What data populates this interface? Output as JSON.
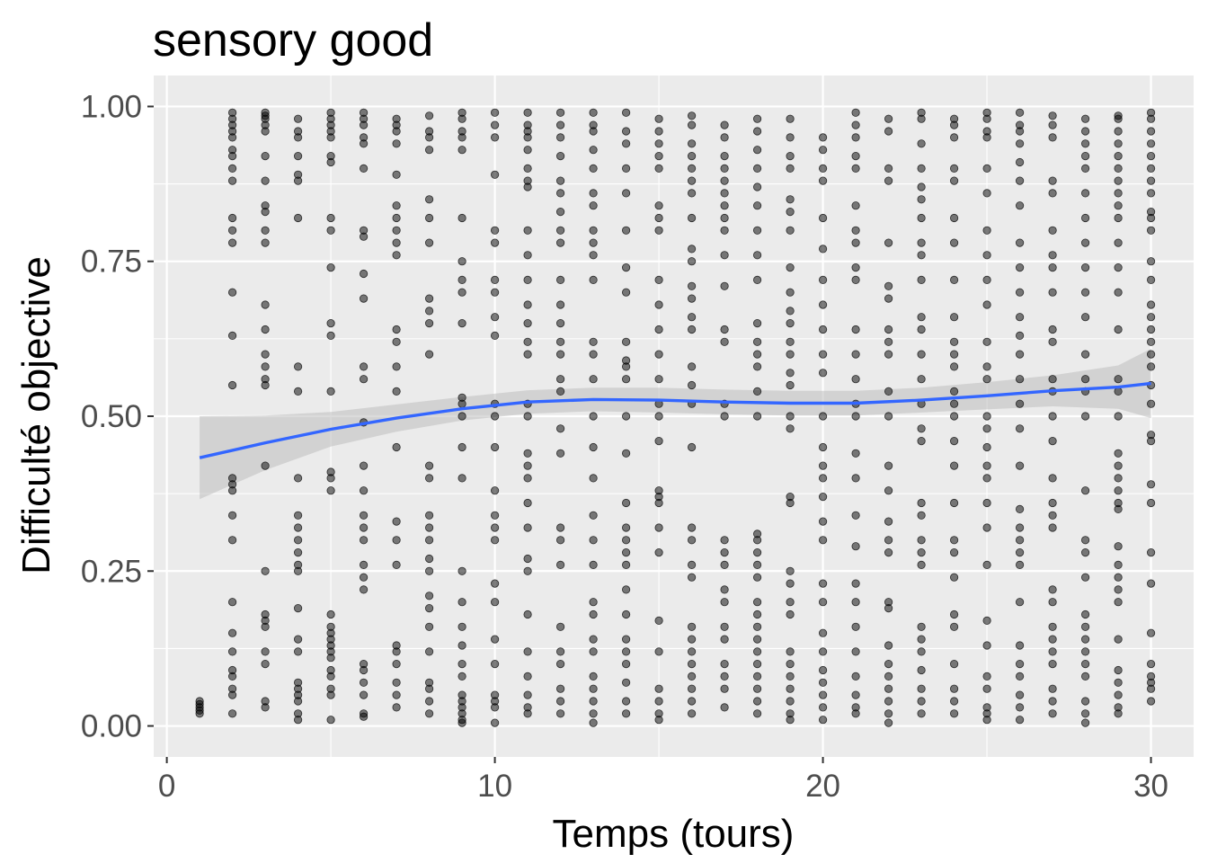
{
  "chart_data": {
    "type": "scatter",
    "title": "sensory good",
    "xlabel": "Temps (tours)",
    "ylabel": "Difficulté objective",
    "xlim": [
      -0.4,
      31.3
    ],
    "ylim": [
      -0.05,
      1.05
    ],
    "x_ticks": [
      0,
      10,
      20,
      30
    ],
    "x_tick_labels": [
      "0",
      "10",
      "20",
      "30"
    ],
    "y_ticks": [
      0,
      0.25,
      0.5,
      0.75,
      1
    ],
    "y_tick_labels": [
      "0.00",
      "0.25",
      "0.50",
      "0.75",
      "1.00"
    ],
    "grid": true,
    "legend": "none",
    "colors": {
      "panel_background": "#ebebeb",
      "grid_major": "#ffffff",
      "points": "#000000",
      "smooth_line": "#3366ff",
      "confidence_band": "#bebebe"
    },
    "point_opacity": 0.5,
    "points": [
      {
        "x": 1,
        "y": [
          0.02,
          0.025,
          0.03,
          0.035,
          0.04
        ]
      },
      {
        "x": 2,
        "y": [
          0.02,
          0.05,
          0.06,
          0.08,
          0.09,
          0.12,
          0.15,
          0.2,
          0.3,
          0.34,
          0.38,
          0.39,
          0.4,
          0.55,
          0.63,
          0.7,
          0.78,
          0.8,
          0.82,
          0.88,
          0.9,
          0.92,
          0.93,
          0.95,
          0.96,
          0.97,
          0.98,
          0.99
        ]
      },
      {
        "x": 3,
        "y": [
          0.03,
          0.04,
          0.1,
          0.12,
          0.16,
          0.17,
          0.18,
          0.25,
          0.42,
          0.55,
          0.56,
          0.58,
          0.6,
          0.64,
          0.68,
          0.78,
          0.8,
          0.83,
          0.84,
          0.88,
          0.92,
          0.96,
          0.97,
          0.98,
          0.985,
          0.99
        ]
      },
      {
        "x": 4,
        "y": [
          0.01,
          0.02,
          0.04,
          0.05,
          0.06,
          0.07,
          0.12,
          0.14,
          0.19,
          0.25,
          0.26,
          0.28,
          0.3,
          0.32,
          0.34,
          0.4,
          0.54,
          0.58,
          0.82,
          0.88,
          0.89,
          0.92,
          0.95,
          0.96,
          0.98
        ]
      },
      {
        "x": 5,
        "y": [
          0.01,
          0.05,
          0.06,
          0.08,
          0.09,
          0.11,
          0.12,
          0.13,
          0.14,
          0.15,
          0.16,
          0.18,
          0.38,
          0.4,
          0.41,
          0.54,
          0.63,
          0.65,
          0.74,
          0.8,
          0.82,
          0.91,
          0.92,
          0.95,
          0.96,
          0.97,
          0.98,
          0.99
        ]
      },
      {
        "x": 6,
        "y": [
          0.015,
          0.02,
          0.05,
          0.07,
          0.09,
          0.1,
          0.22,
          0.24,
          0.26,
          0.3,
          0.32,
          0.34,
          0.38,
          0.42,
          0.49,
          0.56,
          0.58,
          0.69,
          0.73,
          0.79,
          0.8,
          0.9,
          0.94,
          0.95,
          0.97,
          0.98,
          0.99
        ]
      },
      {
        "x": 7,
        "y": [
          0.03,
          0.05,
          0.07,
          0.1,
          0.12,
          0.13,
          0.26,
          0.3,
          0.33,
          0.45,
          0.54,
          0.58,
          0.62,
          0.64,
          0.76,
          0.78,
          0.8,
          0.82,
          0.84,
          0.89,
          0.94,
          0.96,
          0.97,
          0.98
        ]
      },
      {
        "x": 8,
        "y": [
          0.02,
          0.04,
          0.06,
          0.07,
          0.12,
          0.16,
          0.19,
          0.21,
          0.25,
          0.27,
          0.3,
          0.32,
          0.34,
          0.4,
          0.42,
          0.6,
          0.65,
          0.67,
          0.69,
          0.78,
          0.82,
          0.85,
          0.93,
          0.95,
          0.96,
          0.985
        ]
      },
      {
        "x": 9,
        "y": [
          0.005,
          0.01,
          0.02,
          0.03,
          0.04,
          0.05,
          0.08,
          0.1,
          0.13,
          0.16,
          0.2,
          0.25,
          0.4,
          0.45,
          0.5,
          0.52,
          0.53,
          0.65,
          0.7,
          0.72,
          0.75,
          0.82,
          0.93,
          0.95,
          0.96,
          0.98,
          0.99
        ]
      },
      {
        "x": 10,
        "y": [
          0.005,
          0.03,
          0.04,
          0.05,
          0.1,
          0.14,
          0.2,
          0.23,
          0.3,
          0.32,
          0.34,
          0.38,
          0.45,
          0.5,
          0.52,
          0.63,
          0.66,
          0.7,
          0.72,
          0.78,
          0.8,
          0.89,
          0.95,
          0.97,
          0.99
        ]
      },
      {
        "x": 11,
        "y": [
          0.02,
          0.03,
          0.05,
          0.08,
          0.12,
          0.18,
          0.25,
          0.27,
          0.32,
          0.36,
          0.4,
          0.42,
          0.44,
          0.5,
          0.52,
          0.6,
          0.62,
          0.65,
          0.68,
          0.72,
          0.76,
          0.8,
          0.87,
          0.88,
          0.9,
          0.93,
          0.95,
          0.96,
          0.97,
          0.99
        ]
      },
      {
        "x": 12,
        "y": [
          0.02,
          0.04,
          0.06,
          0.1,
          0.12,
          0.16,
          0.26,
          0.3,
          0.32,
          0.44,
          0.48,
          0.54,
          0.56,
          0.6,
          0.62,
          0.65,
          0.68,
          0.72,
          0.78,
          0.8,
          0.83,
          0.86,
          0.88,
          0.92,
          0.95,
          0.97,
          0.99
        ]
      },
      {
        "x": 13,
        "y": [
          0.005,
          0.02,
          0.04,
          0.06,
          0.08,
          0.12,
          0.14,
          0.18,
          0.2,
          0.26,
          0.3,
          0.34,
          0.4,
          0.45,
          0.5,
          0.56,
          0.6,
          0.62,
          0.72,
          0.76,
          0.78,
          0.8,
          0.84,
          0.86,
          0.9,
          0.93,
          0.96,
          0.97,
          0.99
        ]
      },
      {
        "x": 14,
        "y": [
          0.02,
          0.04,
          0.07,
          0.1,
          0.12,
          0.14,
          0.18,
          0.22,
          0.26,
          0.28,
          0.3,
          0.32,
          0.36,
          0.44,
          0.5,
          0.56,
          0.58,
          0.59,
          0.62,
          0.7,
          0.74,
          0.8,
          0.86,
          0.9,
          0.94,
          0.96,
          0.99
        ]
      },
      {
        "x": 15,
        "y": [
          0.01,
          0.02,
          0.04,
          0.06,
          0.12,
          0.17,
          0.28,
          0.32,
          0.36,
          0.37,
          0.38,
          0.46,
          0.5,
          0.52,
          0.56,
          0.6,
          0.64,
          0.68,
          0.72,
          0.8,
          0.82,
          0.84,
          0.9,
          0.92,
          0.94,
          0.96,
          0.98
        ]
      },
      {
        "x": 16,
        "y": [
          0.02,
          0.04,
          0.06,
          0.08,
          0.1,
          0.12,
          0.14,
          0.16,
          0.24,
          0.26,
          0.3,
          0.32,
          0.45,
          0.52,
          0.55,
          0.58,
          0.64,
          0.66,
          0.69,
          0.71,
          0.75,
          0.77,
          0.82,
          0.86,
          0.88,
          0.9,
          0.92,
          0.94,
          0.97,
          0.985
        ]
      },
      {
        "x": 17,
        "y": [
          0.03,
          0.06,
          0.08,
          0.1,
          0.14,
          0.16,
          0.2,
          0.22,
          0.26,
          0.28,
          0.3,
          0.5,
          0.52,
          0.62,
          0.64,
          0.71,
          0.76,
          0.8,
          0.82,
          0.84,
          0.86,
          0.88,
          0.9,
          0.92,
          0.95,
          0.97
        ]
      },
      {
        "x": 18,
        "y": [
          0.02,
          0.04,
          0.06,
          0.08,
          0.1,
          0.12,
          0.14,
          0.16,
          0.18,
          0.2,
          0.24,
          0.26,
          0.28,
          0.3,
          0.31,
          0.5,
          0.54,
          0.58,
          0.6,
          0.62,
          0.65,
          0.72,
          0.76,
          0.8,
          0.84,
          0.87,
          0.9,
          0.93,
          0.96,
          0.98
        ]
      },
      {
        "x": 19,
        "y": [
          0.01,
          0.02,
          0.04,
          0.06,
          0.08,
          0.1,
          0.12,
          0.18,
          0.2,
          0.23,
          0.25,
          0.36,
          0.37,
          0.48,
          0.5,
          0.55,
          0.57,
          0.6,
          0.62,
          0.65,
          0.67,
          0.7,
          0.74,
          0.8,
          0.83,
          0.85,
          0.9,
          0.92,
          0.95,
          0.98
        ]
      },
      {
        "x": 20,
        "y": [
          0.01,
          0.03,
          0.05,
          0.07,
          0.09,
          0.12,
          0.15,
          0.2,
          0.23,
          0.3,
          0.33,
          0.37,
          0.4,
          0.42,
          0.45,
          0.5,
          0.57,
          0.6,
          0.64,
          0.68,
          0.72,
          0.77,
          0.82,
          0.88,
          0.9,
          0.93,
          0.95
        ]
      },
      {
        "x": 21,
        "y": [
          0.02,
          0.03,
          0.05,
          0.08,
          0.12,
          0.16,
          0.2,
          0.23,
          0.29,
          0.34,
          0.4,
          0.44,
          0.5,
          0.52,
          0.56,
          0.6,
          0.64,
          0.72,
          0.74,
          0.78,
          0.8,
          0.84,
          0.9,
          0.92,
          0.95,
          0.97,
          0.99
        ]
      },
      {
        "x": 22,
        "y": [
          0.005,
          0.02,
          0.04,
          0.06,
          0.08,
          0.1,
          0.13,
          0.19,
          0.2,
          0.28,
          0.3,
          0.33,
          0.38,
          0.42,
          0.5,
          0.54,
          0.6,
          0.62,
          0.64,
          0.69,
          0.71,
          0.78,
          0.88,
          0.9,
          0.96,
          0.98
        ]
      },
      {
        "x": 23,
        "y": [
          0.02,
          0.04,
          0.06,
          0.09,
          0.12,
          0.14,
          0.16,
          0.26,
          0.28,
          0.3,
          0.34,
          0.36,
          0.46,
          0.48,
          0.52,
          0.56,
          0.6,
          0.64,
          0.66,
          0.72,
          0.76,
          0.78,
          0.82,
          0.85,
          0.87,
          0.9,
          0.94,
          0.98,
          0.99
        ]
      },
      {
        "x": 24,
        "y": [
          0.02,
          0.04,
          0.06,
          0.1,
          0.16,
          0.18,
          0.24,
          0.28,
          0.3,
          0.36,
          0.42,
          0.46,
          0.5,
          0.52,
          0.54,
          0.58,
          0.6,
          0.62,
          0.66,
          0.72,
          0.78,
          0.82,
          0.88,
          0.9,
          0.95,
          0.97,
          0.98
        ]
      },
      {
        "x": 25,
        "y": [
          0.01,
          0.02,
          0.03,
          0.06,
          0.08,
          0.13,
          0.17,
          0.26,
          0.32,
          0.36,
          0.4,
          0.42,
          0.45,
          0.48,
          0.5,
          0.56,
          0.58,
          0.62,
          0.68,
          0.72,
          0.76,
          0.8,
          0.86,
          0.9,
          0.95,
          0.96,
          0.98,
          0.99
        ]
      },
      {
        "x": 26,
        "y": [
          0.01,
          0.03,
          0.05,
          0.08,
          0.1,
          0.13,
          0.2,
          0.26,
          0.28,
          0.3,
          0.32,
          0.35,
          0.42,
          0.48,
          0.52,
          0.56,
          0.6,
          0.63,
          0.66,
          0.7,
          0.74,
          0.78,
          0.84,
          0.88,
          0.91,
          0.94,
          0.96,
          0.97,
          0.99
        ]
      },
      {
        "x": 27,
        "y": [
          0.02,
          0.04,
          0.06,
          0.1,
          0.12,
          0.14,
          0.16,
          0.2,
          0.22,
          0.32,
          0.34,
          0.36,
          0.4,
          0.46,
          0.5,
          0.54,
          0.56,
          0.62,
          0.64,
          0.7,
          0.74,
          0.76,
          0.8,
          0.86,
          0.88,
          0.95,
          0.97,
          0.985
        ]
      },
      {
        "x": 28,
        "y": [
          0.005,
          0.02,
          0.04,
          0.08,
          0.1,
          0.12,
          0.14,
          0.16,
          0.18,
          0.24,
          0.28,
          0.3,
          0.38,
          0.5,
          0.54,
          0.56,
          0.6,
          0.66,
          0.7,
          0.74,
          0.78,
          0.82,
          0.86,
          0.9,
          0.92,
          0.94,
          0.96,
          0.98
        ]
      },
      {
        "x": 29,
        "y": [
          0.02,
          0.03,
          0.05,
          0.07,
          0.09,
          0.14,
          0.2,
          0.22,
          0.24,
          0.26,
          0.29,
          0.35,
          0.36,
          0.38,
          0.4,
          0.42,
          0.44,
          0.5,
          0.54,
          0.56,
          0.64,
          0.7,
          0.74,
          0.78,
          0.82,
          0.84,
          0.86,
          0.88,
          0.9,
          0.92,
          0.94,
          0.96,
          0.98,
          0.985
        ]
      },
      {
        "x": 30,
        "y": [
          0.04,
          0.06,
          0.07,
          0.08,
          0.1,
          0.15,
          0.23,
          0.28,
          0.36,
          0.39,
          0.46,
          0.47,
          0.52,
          0.55,
          0.58,
          0.6,
          0.62,
          0.64,
          0.66,
          0.68,
          0.72,
          0.75,
          0.8,
          0.82,
          0.83,
          0.86,
          0.88,
          0.9,
          0.92,
          0.94,
          0.96,
          0.98,
          0.99
        ]
      }
    ],
    "smooth": {
      "method": "loess",
      "x": [
        1,
        3,
        5,
        7,
        9,
        11,
        13,
        15,
        17,
        19,
        21,
        23,
        25,
        27,
        29,
        30
      ],
      "y": [
        0.433,
        0.457,
        0.479,
        0.497,
        0.512,
        0.523,
        0.527,
        0.526,
        0.523,
        0.521,
        0.521,
        0.526,
        0.533,
        0.541,
        0.547,
        0.553
      ],
      "lower": [
        0.366,
        0.413,
        0.451,
        0.475,
        0.493,
        0.504,
        0.508,
        0.506,
        0.503,
        0.501,
        0.501,
        0.506,
        0.511,
        0.516,
        0.512,
        0.497
      ],
      "upper": [
        0.5,
        0.501,
        0.507,
        0.519,
        0.531,
        0.542,
        0.546,
        0.546,
        0.543,
        0.541,
        0.541,
        0.546,
        0.555,
        0.566,
        0.582,
        0.609
      ]
    }
  }
}
